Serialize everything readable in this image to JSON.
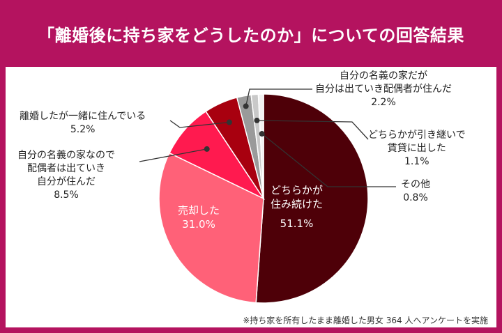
{
  "title": "「離婚後に持ち家をどうしたのか」についての回答結果",
  "note": "※持ち家を所有したまま離婚した男女 364 人へアンケートを実施",
  "colors": {
    "accent": "#b4135f",
    "slice_colors": [
      "#4e0008",
      "#ff6178",
      "#ff1a4f",
      "#a8000f",
      "#9a9a9a",
      "#c9c9c9",
      "#f2f2f2"
    ]
  },
  "chart_data": {
    "type": "pie",
    "title": "「離婚後に持ち家をどうしたのか」についての回答結果",
    "start": "12 o'clock, clockwise",
    "slices": [
      {
        "name": "どちらかが住み続けた",
        "lines": [
          "どちらかが",
          "住み続けた"
        ],
        "value": 51.1,
        "label": "51.1%"
      },
      {
        "name": "売却した",
        "lines": [
          "売却した"
        ],
        "value": 31.0,
        "label": "31.0%"
      },
      {
        "name": "自分の名義の家なので配偶者は出ていき自分が住んだ",
        "lines": [
          "自分の名義の家なので",
          "配偶者は出ていき",
          "自分が住んだ"
        ],
        "value": 8.5,
        "label": "8.5%"
      },
      {
        "name": "離婚したが一緒に住んでいる",
        "lines": [
          "離婚したが一緒に住んでいる"
        ],
        "value": 5.2,
        "label": "5.2%"
      },
      {
        "name": "自分の名義の家だが自分は出ていき配偶者が住んだ",
        "lines": [
          "自分の名義の家だが",
          "自分は出ていき配偶者が住んだ"
        ],
        "value": 2.2,
        "label": "2.2%"
      },
      {
        "name": "どちらかが引き継いで賃貸に出した",
        "lines": [
          "どちらかが引き継いで",
          "賃貸に出した"
        ],
        "value": 1.1,
        "label": "1.1%"
      },
      {
        "name": "その他",
        "lines": [
          "その他"
        ],
        "value": 0.8,
        "label": "0.8%"
      }
    ]
  }
}
